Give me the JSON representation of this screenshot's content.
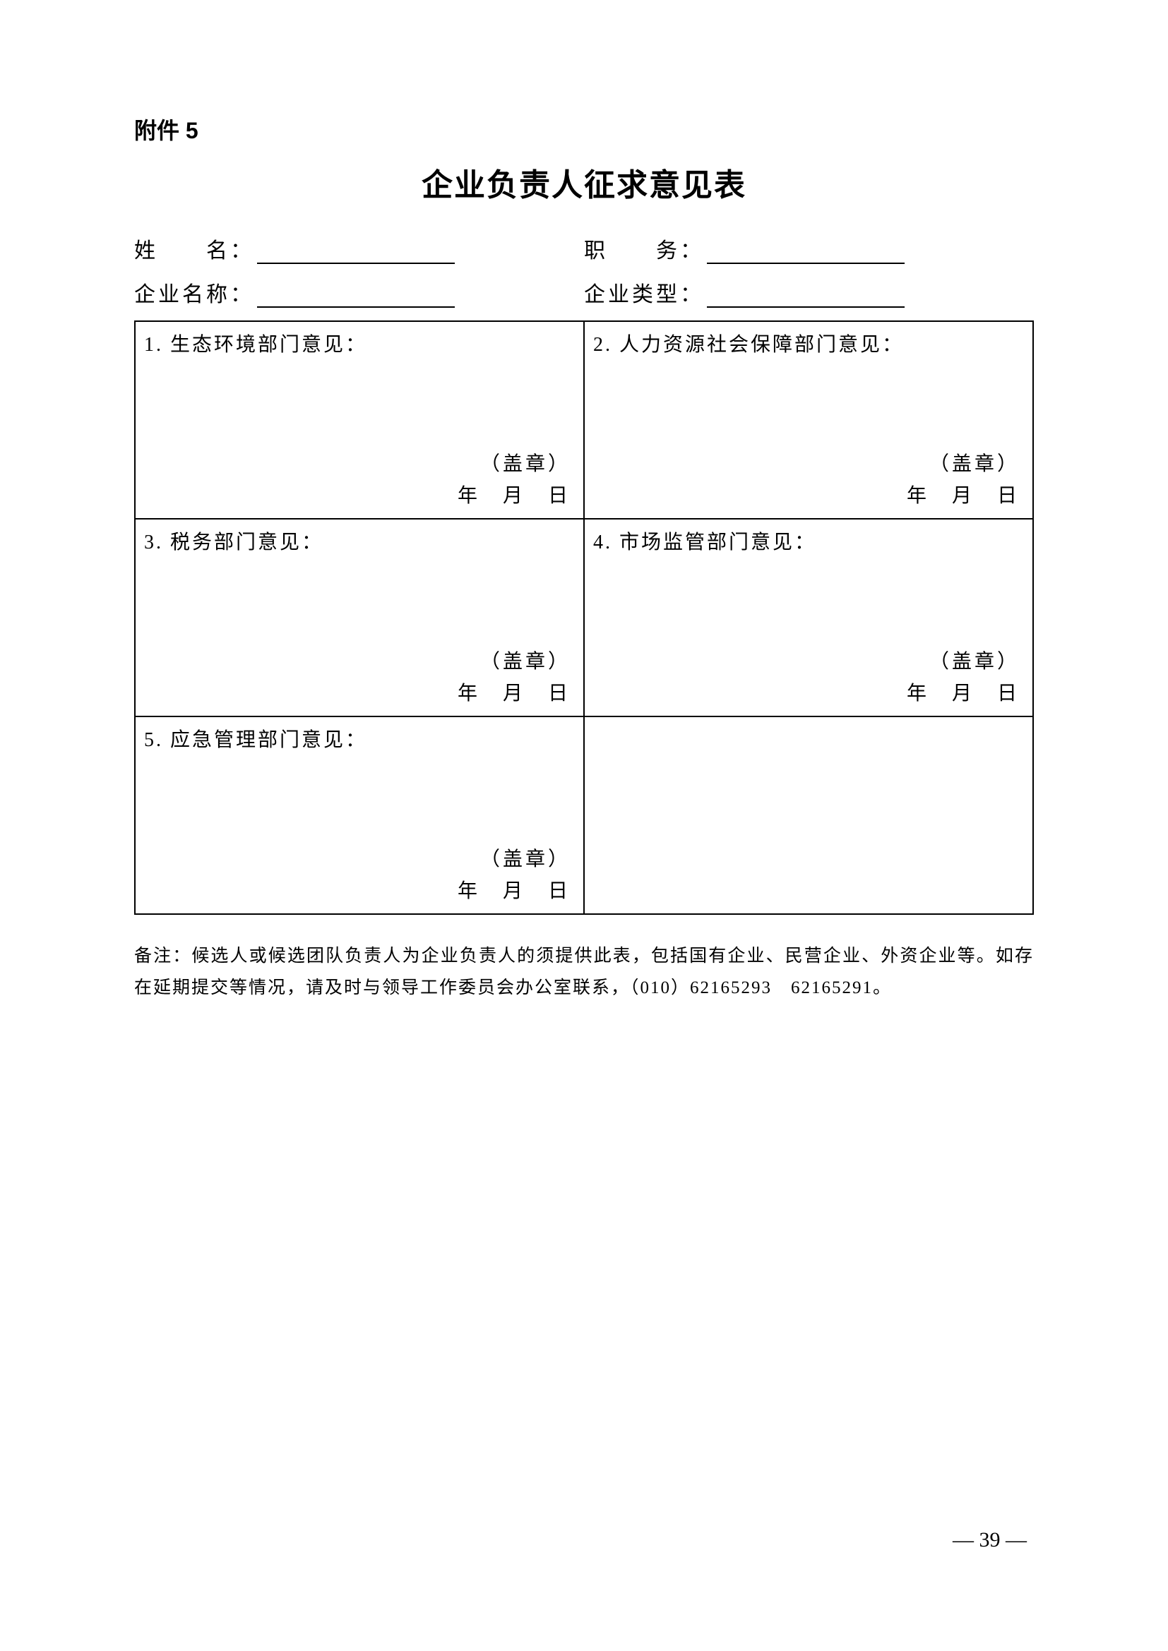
{
  "attachment_label": "附件 5",
  "title": "企业负责人征求意见表",
  "info": {
    "row1": {
      "label1": "姓　　名：",
      "label2": "职　　务："
    },
    "row2": {
      "label1": "企业名称：",
      "label2": "企业类型："
    }
  },
  "cells": {
    "c1": {
      "title": "1. 生态环境部门意见：",
      "seal": "（盖章）",
      "date": "年　月　日"
    },
    "c2": {
      "title": "2. 人力资源社会保障部门意见：",
      "seal": "（盖章）",
      "date": "年　月　日"
    },
    "c3": {
      "title": "3. 税务部门意见：",
      "seal": "（盖章）",
      "date": "年　月　日"
    },
    "c4": {
      "title": "4. 市场监管部门意见：",
      "seal": "（盖章）",
      "date": "年　月　日"
    },
    "c5": {
      "title": "5. 应急管理部门意见：",
      "seal": "（盖章）",
      "date": "年　月　日"
    }
  },
  "remark": "备注：候选人或候选团队负责人为企业负责人的须提供此表，包括国有企业、民营企业、外资企业等。如存在延期提交等情况，请及时与领导工作委员会办公室联系，（010）62165293　62165291。",
  "page_number": "— 39 —"
}
